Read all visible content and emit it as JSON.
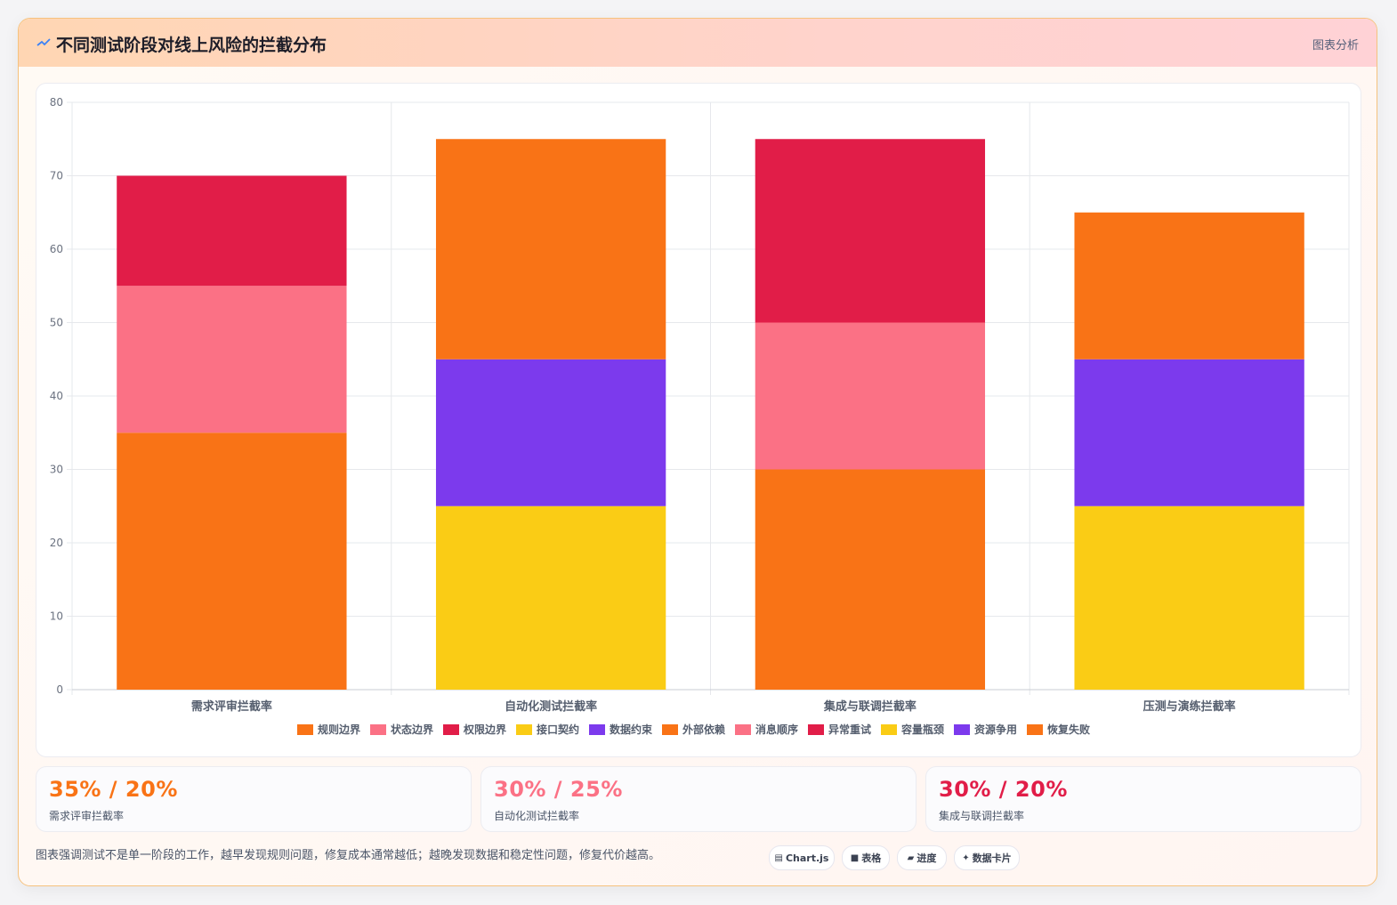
{
  "header": {
    "title": "不同测试阶段对线上风险的拦截分布",
    "link": "图表分析"
  },
  "chart_data": {
    "type": "bar",
    "stacked": true,
    "categories": [
      "需求评审拦截率",
      "自动化测试拦截率",
      "集成与联调拦截率",
      "压测与演练拦截率"
    ],
    "ylim": [
      0,
      80
    ],
    "yticks": [
      0,
      10,
      20,
      30,
      40,
      50,
      60,
      70,
      80
    ],
    "grid": true,
    "legend_position": "bottom",
    "series": [
      {
        "name": "规则边界",
        "color": "#f97316",
        "values": [
          35,
          0,
          0,
          0
        ]
      },
      {
        "name": "状态边界",
        "color": "#fb7185",
        "values": [
          20,
          0,
          0,
          0
        ]
      },
      {
        "name": "权限边界",
        "color": "#e11d48",
        "values": [
          15,
          0,
          0,
          0
        ]
      },
      {
        "name": "接口契约",
        "color": "#facc15",
        "values": [
          0,
          25,
          0,
          0
        ]
      },
      {
        "name": "数据约束",
        "color": "#7c3aed",
        "values": [
          0,
          20,
          0,
          0
        ]
      },
      {
        "name": "外部依赖",
        "color": "#f97316",
        "values": [
          0,
          30,
          30,
          0
        ]
      },
      {
        "name": "消息顺序",
        "color": "#fb7185",
        "values": [
          0,
          0,
          20,
          0
        ]
      },
      {
        "name": "异常重试",
        "color": "#e11d48",
        "values": [
          0,
          0,
          25,
          0
        ]
      },
      {
        "name": "容量瓶颈",
        "color": "#facc15",
        "values": [
          0,
          0,
          0,
          25
        ]
      },
      {
        "name": "资源争用",
        "color": "#7c3aed",
        "values": [
          0,
          0,
          0,
          20
        ]
      },
      {
        "name": "恢复失败",
        "color": "#f97316",
        "values": [
          0,
          0,
          0,
          20
        ]
      }
    ]
  },
  "kpis": [
    {
      "value": "35% / 20%",
      "label": "需求评审拦截率",
      "color": "#f97316"
    },
    {
      "value": "30% / 25%",
      "label": "自动化测试拦截率",
      "color": "#fb7185"
    },
    {
      "value": "30% / 20%",
      "label": "集成与联调拦截率",
      "color": "#e11d48"
    }
  ],
  "note": "图表强调测试不是单一阶段的工作，越早发现规则问题，修复成本通常越低；越晚发现数据和稳定性问题，修复代价越高。",
  "tags": [
    {
      "icon": "chart-icon",
      "label": "Chart.js"
    },
    {
      "icon": "table-icon",
      "label": "表格"
    },
    {
      "icon": "progress-icon",
      "label": "进度"
    },
    {
      "icon": "sparkle-icon",
      "label": "数据卡片"
    }
  ]
}
